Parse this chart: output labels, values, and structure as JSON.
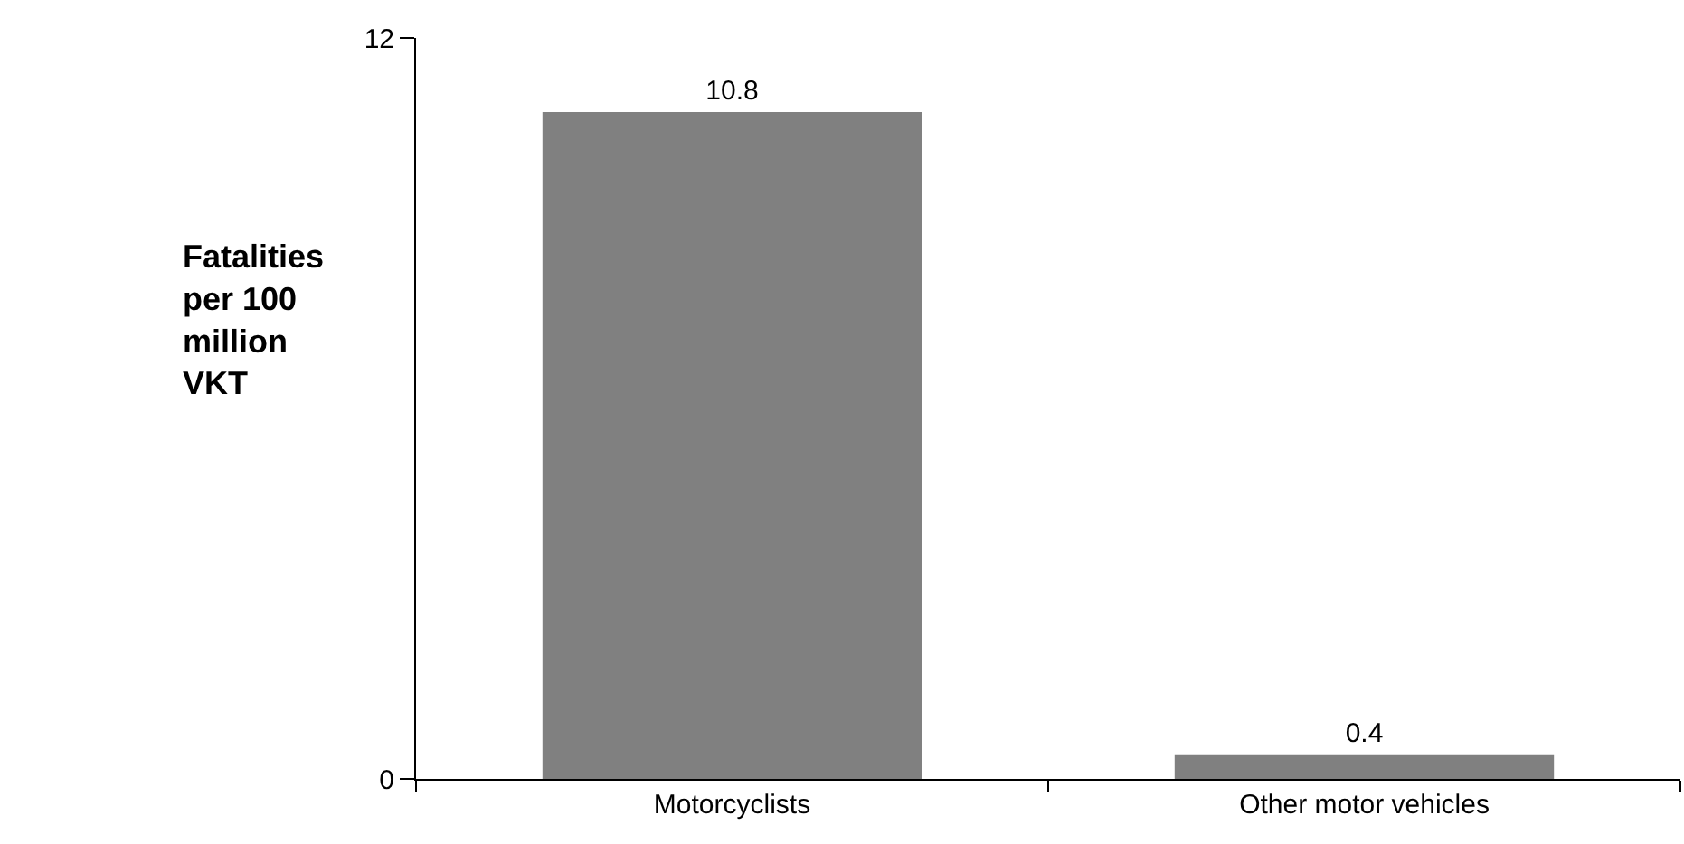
{
  "chart_data": {
    "type": "bar",
    "ylabel": "Fatalities per 100 million VKT",
    "categories": [
      "Motorcyclists",
      "Other motor vehicles"
    ],
    "values": [
      10.8,
      0.4
    ],
    "color": "#808080",
    "ylim": [
      0,
      12
    ],
    "yticks": [
      0,
      12
    ],
    "data_labels": true,
    "legend": false
  }
}
